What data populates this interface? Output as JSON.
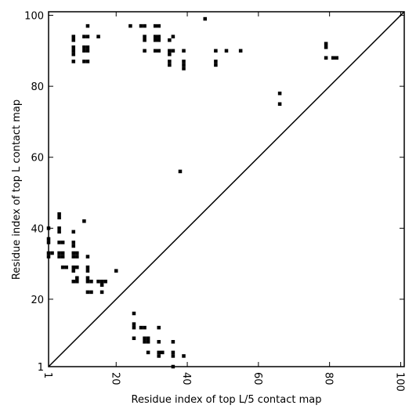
{
  "chart_data": {
    "type": "heatmap",
    "title": "",
    "xlabel": "Residue index of top L/5 contact map",
    "ylabel": "Residue index of top L contact map",
    "xlim": [
      1,
      101
    ],
    "ylim": [
      1,
      101
    ],
    "xticks": [
      1,
      20,
      40,
      60,
      80,
      100
    ],
    "yticks": [
      1,
      20,
      40,
      60,
      80,
      100
    ],
    "x_tick_labels": [
      "1",
      "20",
      "40",
      "60",
      "80",
      "100"
    ],
    "y_tick_labels": [
      "1",
      "20",
      "40",
      "60",
      "80",
      "100"
    ],
    "x_tick_rotation": 90,
    "cell_color": "#000000",
    "diagonal_color": "#000000",
    "diagonal": true,
    "upper_triangle_contacts": [
      [
        45,
        99
      ],
      [
        12,
        97
      ],
      [
        24,
        97
      ],
      [
        27,
        97
      ],
      [
        28,
        97
      ],
      [
        31,
        97
      ],
      [
        32,
        97
      ],
      [
        8,
        94
      ],
      [
        11,
        94
      ],
      [
        12,
        94
      ],
      [
        15,
        94
      ],
      [
        28,
        94
      ],
      [
        31,
        94
      ],
      [
        32,
        94
      ],
      [
        36,
        94
      ],
      [
        8,
        93
      ],
      [
        28,
        93
      ],
      [
        31,
        93
      ],
      [
        32,
        93
      ],
      [
        35,
        93
      ],
      [
        8,
        91
      ],
      [
        11,
        91
      ],
      [
        12,
        91
      ],
      [
        79,
        92
      ],
      [
        79,
        91
      ],
      [
        8,
        90
      ],
      [
        11,
        90
      ],
      [
        12,
        90
      ],
      [
        28,
        90
      ],
      [
        31,
        90
      ],
      [
        32,
        90
      ],
      [
        35,
        90
      ],
      [
        36,
        90
      ],
      [
        39,
        90
      ],
      [
        48,
        90
      ],
      [
        51,
        90
      ],
      [
        55,
        90
      ],
      [
        8,
        89
      ],
      [
        35,
        89
      ],
      [
        79,
        88
      ],
      [
        81,
        88
      ],
      [
        82,
        88
      ],
      [
        8,
        87
      ],
      [
        11,
        87
      ],
      [
        12,
        87
      ],
      [
        35,
        87
      ],
      [
        39,
        87
      ],
      [
        48,
        87
      ],
      [
        35,
        86
      ],
      [
        39,
        86
      ],
      [
        48,
        86
      ],
      [
        39,
        85
      ],
      [
        66,
        78
      ],
      [
        66,
        75
      ],
      [
        38,
        56
      ]
    ],
    "lower_triangle_contacts": [
      [
        4,
        44
      ],
      [
        4,
        43
      ],
      [
        11,
        42
      ],
      [
        1,
        40
      ],
      [
        4,
        40
      ],
      [
        8,
        39
      ],
      [
        4,
        39
      ],
      [
        1,
        37
      ],
      [
        1,
        36
      ],
      [
        4,
        36
      ],
      [
        5,
        36
      ],
      [
        8,
        36
      ],
      [
        8,
        35
      ],
      [
        1,
        33
      ],
      [
        2,
        33
      ],
      [
        4,
        33
      ],
      [
        5,
        33
      ],
      [
        8,
        33
      ],
      [
        9,
        33
      ],
      [
        1,
        32
      ],
      [
        4,
        32
      ],
      [
        5,
        32
      ],
      [
        8,
        32
      ],
      [
        9,
        32
      ],
      [
        12,
        32
      ],
      [
        5,
        29
      ],
      [
        6,
        29
      ],
      [
        8,
        29
      ],
      [
        9,
        29
      ],
      [
        12,
        29
      ],
      [
        8,
        28
      ],
      [
        12,
        28
      ],
      [
        20,
        28
      ],
      [
        9,
        26
      ],
      [
        12,
        26
      ],
      [
        8,
        25
      ],
      [
        9,
        25
      ],
      [
        12,
        25
      ],
      [
        13,
        25
      ],
      [
        15,
        25
      ],
      [
        16,
        25
      ],
      [
        17,
        25
      ],
      [
        16,
        24
      ],
      [
        12,
        22
      ],
      [
        13,
        22
      ],
      [
        16,
        22
      ],
      [
        25,
        16
      ],
      [
        25,
        13
      ],
      [
        25,
        12
      ],
      [
        27,
        12
      ],
      [
        28,
        12
      ],
      [
        32,
        12
      ],
      [
        25,
        9
      ],
      [
        28,
        9
      ],
      [
        29,
        9
      ],
      [
        28,
        8
      ],
      [
        29,
        8
      ],
      [
        32,
        8
      ],
      [
        36,
        8
      ],
      [
        29,
        5
      ],
      [
        32,
        5
      ],
      [
        33,
        5
      ],
      [
        36,
        5
      ],
      [
        32,
        4
      ],
      [
        36,
        4
      ],
      [
        39,
        4
      ],
      [
        36,
        1
      ]
    ]
  }
}
